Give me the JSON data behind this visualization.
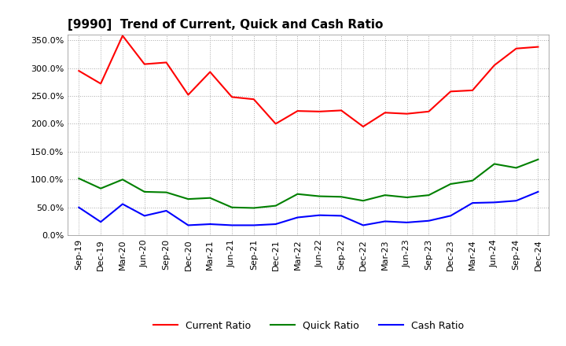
{
  "title": "[9990]  Trend of Current, Quick and Cash Ratio",
  "x_labels": [
    "Sep-19",
    "Dec-19",
    "Mar-20",
    "Jun-20",
    "Sep-20",
    "Dec-20",
    "Mar-21",
    "Jun-21",
    "Sep-21",
    "Dec-21",
    "Mar-22",
    "Jun-22",
    "Sep-22",
    "Dec-22",
    "Mar-23",
    "Jun-23",
    "Sep-23",
    "Dec-23",
    "Mar-24",
    "Jun-24",
    "Sep-24",
    "Dec-24"
  ],
  "current_ratio": [
    295,
    272,
    358,
    307,
    310,
    252,
    293,
    248,
    244,
    200,
    223,
    222,
    224,
    195,
    220,
    218,
    222,
    258,
    260,
    305,
    335,
    338
  ],
  "quick_ratio": [
    102,
    84,
    100,
    78,
    77,
    65,
    67,
    50,
    49,
    53,
    74,
    70,
    69,
    62,
    72,
    68,
    72,
    92,
    98,
    128,
    121,
    136
  ],
  "cash_ratio": [
    50,
    24,
    56,
    35,
    44,
    18,
    20,
    18,
    18,
    20,
    32,
    36,
    35,
    18,
    25,
    23,
    26,
    35,
    58,
    59,
    62,
    78
  ],
  "current_color": "#FF0000",
  "quick_color": "#008000",
  "cash_color": "#0000FF",
  "ylim": [
    0,
    360
  ],
  "yticks": [
    0,
    50,
    100,
    150,
    200,
    250,
    300,
    350
  ],
  "background_color": "#FFFFFF",
  "grid_color": "#AAAAAA",
  "title_fontsize": 11,
  "tick_fontsize": 8,
  "line_width": 1.5,
  "legend_fontsize": 9
}
